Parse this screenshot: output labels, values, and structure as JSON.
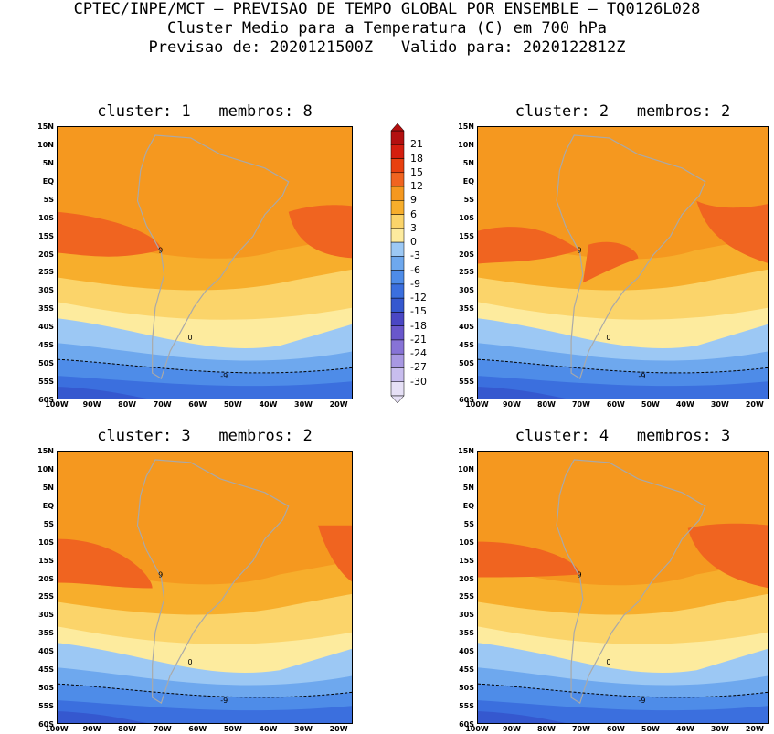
{
  "header": {
    "line1": "CPTEC/INPE/MCT – PREVISAO DE TEMPO GLOBAL POR ENSEMBLE – TQ0126L028",
    "line2": "Cluster Medio para a Temperatura (C) em 700 hPa",
    "line3": "Previsao de: 2020121500Z   Valido para: 2020122812Z"
  },
  "panels": [
    {
      "title": "cluster: 1   membros: 8"
    },
    {
      "title": "cluster: 2   membros: 2"
    },
    {
      "title": "cluster: 3   membros: 2"
    },
    {
      "title": "cluster: 4   membros: 3"
    }
  ],
  "axes": {
    "lat_labels": [
      "15N",
      "10N",
      "5N",
      "EQ",
      "5S",
      "10S",
      "15S",
      "20S",
      "25S",
      "30S",
      "35S",
      "40S",
      "45S",
      "50S",
      "55S",
      "60S"
    ],
    "lon_labels": [
      "100W",
      "90W",
      "80W",
      "70W",
      "60W",
      "50W",
      "40W",
      "30W",
      "20W"
    ]
  },
  "contour_labels": [
    "9",
    "9",
    "9",
    "0",
    "-9",
    "-9"
  ],
  "colorbar": {
    "levels": [
      "21",
      "18",
      "15",
      "12",
      "9",
      "6",
      "3",
      "0",
      "-3",
      "-6",
      "-9",
      "-12",
      "-15",
      "-18",
      "-21",
      "-24",
      "-27",
      "-30"
    ],
    "colors": [
      "#b31010",
      "#d41e0f",
      "#e8400f",
      "#f06420",
      "#f5981f",
      "#f7ae2c",
      "#fbd46a",
      "#fdeb9e",
      "#9cc8f4",
      "#6ea8ee",
      "#4e8ce8",
      "#3b6fde",
      "#3558cf",
      "#4a47c4",
      "#6957cc",
      "#8773d6",
      "#a898e2",
      "#c8bdee",
      "#e6e0f6"
    ],
    "contour_label_color": "#000000"
  }
}
